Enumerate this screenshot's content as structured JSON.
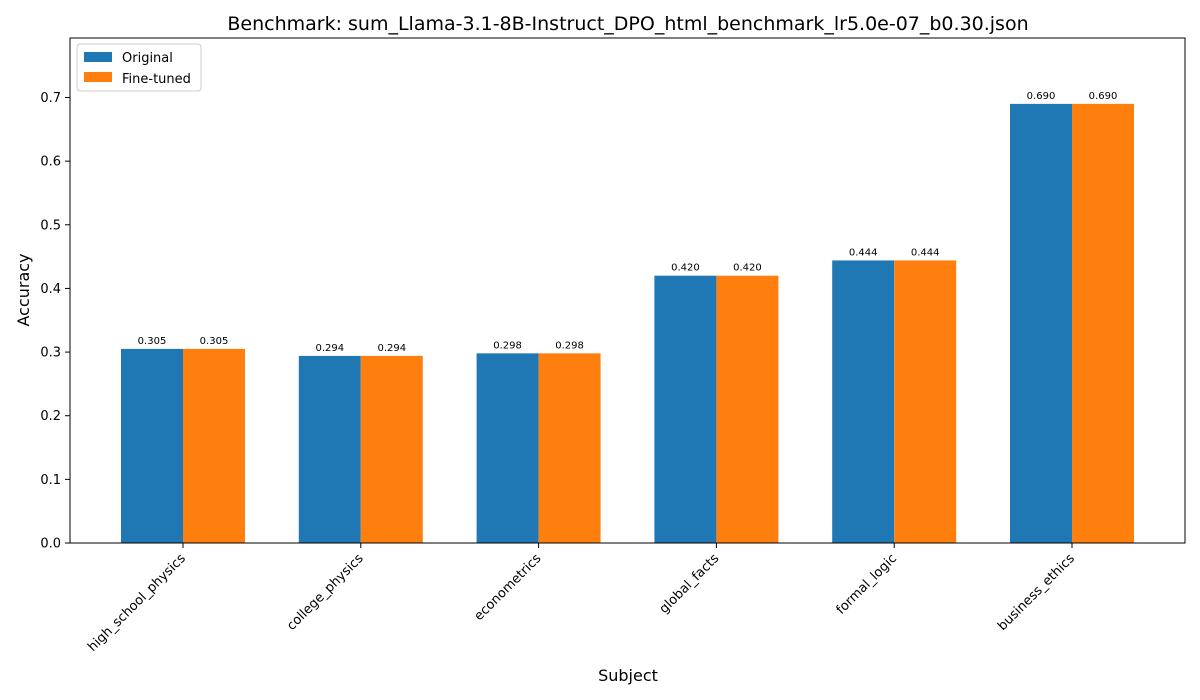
{
  "chart_data": {
    "type": "bar",
    "title": "Benchmark: sum_Llama-3.1-8B-Instruct_DPO_html_benchmark_lr5.0e-07_b0.30.json",
    "xlabel": "Subject",
    "ylabel": "Accuracy",
    "categories": [
      "high_school_physics",
      "college_physics",
      "econometrics",
      "global_facts",
      "formal_logic",
      "business_ethics"
    ],
    "series": [
      {
        "name": "Original",
        "color": "#1f77b4",
        "values": [
          0.305,
          0.294,
          0.298,
          0.42,
          0.444,
          0.69
        ],
        "labels": [
          "0.305",
          "0.294",
          "0.298",
          "0.420",
          "0.444",
          "0.690"
        ]
      },
      {
        "name": "Fine-tuned",
        "color": "#ff7f0e",
        "values": [
          0.305,
          0.294,
          0.298,
          0.42,
          0.444,
          0.69
        ],
        "labels": [
          "0.305",
          "0.294",
          "0.298",
          "0.420",
          "0.444",
          "0.690"
        ]
      }
    ],
    "ylim": [
      0,
      0.7935
    ],
    "yticks": [
      0.0,
      0.1,
      0.2,
      0.3,
      0.4,
      0.5,
      0.6,
      0.7
    ],
    "ytick_labels": [
      "0.0",
      "0.1",
      "0.2",
      "0.3",
      "0.4",
      "0.5",
      "0.6",
      "0.7"
    ],
    "legend_position": "top-left",
    "grid": false
  }
}
